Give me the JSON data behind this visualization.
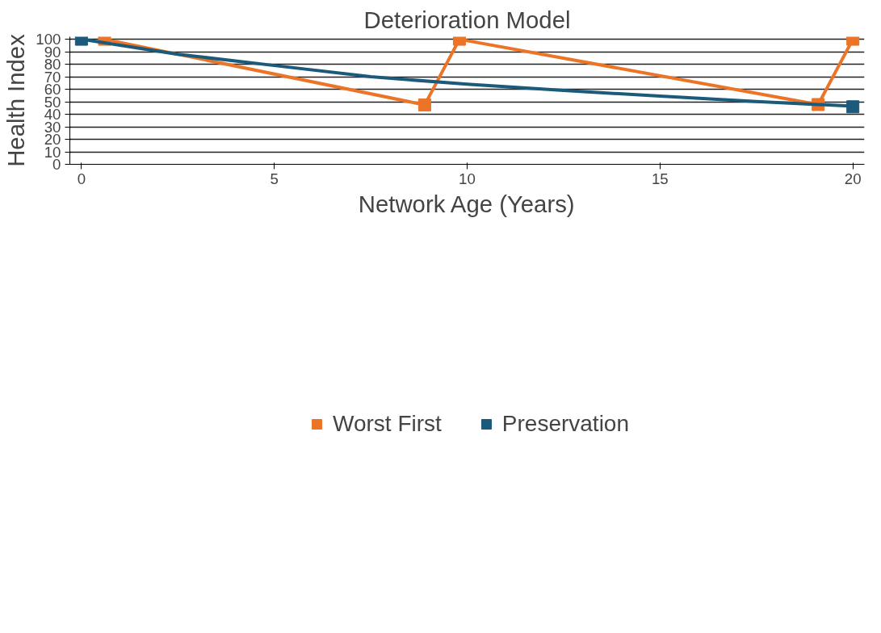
{
  "chart_data": {
    "type": "line",
    "title": "Deterioration Model",
    "xlabel": "Network Age (Years)",
    "ylabel": "Health Index",
    "xlim": [
      -0.3,
      20.3
    ],
    "xticks": [
      0,
      5,
      10,
      15,
      20
    ],
    "ylim": [
      0,
      102
    ],
    "yticks": [
      0,
      10,
      20,
      30,
      40,
      50,
      60,
      70,
      80,
      90,
      100
    ],
    "grid": "y",
    "legend": "bottom",
    "line_style": "solid",
    "series": [
      {
        "name": "Worst First",
        "color": "#ec7427",
        "marker": "square",
        "x": [
          0.6,
          8.9,
          9.8,
          19.1,
          20
        ],
        "values": [
          100,
          47.5,
          100,
          47.8,
          100
        ]
      },
      {
        "name": "Preservation",
        "color": "#1b5a7a",
        "marker": "none",
        "x": [
          0,
          2.5,
          5,
          7.5,
          10,
          12.5,
          15,
          17.5,
          20
        ],
        "values": [
          100,
          88,
          79,
          70,
          64,
          59,
          54.5,
          50.2,
          46.5
        ]
      },
      {
        "type": "scatter",
        "color": "#1b5a7a",
        "marker": "square",
        "x": [
          0,
          20
        ],
        "values": [
          100,
          46
        ]
      }
    ]
  }
}
